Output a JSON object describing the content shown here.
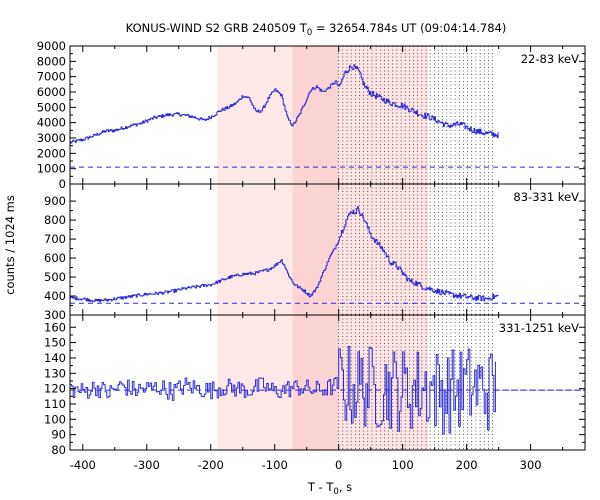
{
  "chart_data": {
    "type": "line",
    "title": "KONUS-WIND S2 GRB 240509 T",
    "title_sub": "0",
    "title_rest": " = 32654.784s UT (09:04:14.784)",
    "xlabel": "T - T",
    "xlabel_sub": "0",
    "xlabel_rest": ", s",
    "ylabel": "counts / 1024 ms",
    "xlim": [
      -420,
      385
    ],
    "x_ticks": [
      -400,
      -300,
      -200,
      -100,
      0,
      100,
      200,
      300
    ],
    "x_tick_labels": [
      "-400",
      "-300",
      "-200",
      "-100",
      "0",
      "100",
      "200",
      "300"
    ],
    "series_color": "#2e2ed6",
    "shading": [
      {
        "from": -190,
        "to": -72,
        "color": "#fde8e8"
      },
      {
        "from": -72,
        "to": 0,
        "color": "#fbd3d3"
      },
      {
        "from": 0,
        "to": 140,
        "color": "#fde3e3"
      }
    ],
    "dotted_lines": {
      "from": 0,
      "to": 245,
      "step": 6.5
    },
    "panels": [
      {
        "band": "22-83 keV",
        "ylim": [
          0,
          9000
        ],
        "y_ticks": [
          0,
          1000,
          2000,
          3000,
          4000,
          5000,
          6000,
          7000,
          8000,
          9000
        ],
        "y_tick_labels": [
          "0",
          "1000",
          "2000",
          "3000",
          "4000",
          "5000",
          "6000",
          "7000",
          "8000",
          "9000"
        ],
        "background": 1100,
        "series": {
          "x": [
            -420,
            -400,
            -380,
            -365,
            -350,
            -330,
            -310,
            -290,
            -270,
            -250,
            -230,
            -210,
            -195,
            -185,
            -172,
            -160,
            -150,
            -140,
            -130,
            -120,
            -110,
            -100,
            -90,
            -80,
            -72,
            -62,
            -52,
            -45,
            -35,
            -25,
            -15,
            -5,
            0,
            10,
            20,
            30,
            40,
            50,
            60,
            70,
            80,
            90,
            100,
            110,
            120,
            130,
            140,
            150,
            160,
            170,
            180,
            190,
            200,
            210,
            220,
            230,
            240,
            250
          ],
          "y": [
            2700,
            2900,
            3200,
            3450,
            3500,
            3750,
            3950,
            4300,
            4500,
            4550,
            4400,
            4150,
            4500,
            4800,
            5000,
            5300,
            5750,
            5600,
            4700,
            4800,
            5600,
            6150,
            5800,
            4250,
            3800,
            4500,
            5400,
            6100,
            6350,
            6000,
            6300,
            6700,
            6300,
            7300,
            7700,
            7400,
            6400,
            5900,
            5700,
            5500,
            5300,
            5200,
            5100,
            4900,
            4700,
            4500,
            4400,
            4200,
            4000,
            3800,
            3850,
            3900,
            3700,
            3500,
            3400,
            3300,
            3250,
            3200
          ]
        }
      },
      {
        "band": "83-331 keV",
        "ylim": [
          300,
          990
        ],
        "y_ticks": [
          300,
          400,
          500,
          600,
          700,
          800,
          900
        ],
        "y_tick_labels": [
          "300",
          "400",
          "500",
          "600",
          "700",
          "800",
          "900"
        ],
        "background": 362,
        "series": {
          "x": [
            -420,
            -400,
            -380,
            -360,
            -340,
            -320,
            -300,
            -280,
            -260,
            -240,
            -220,
            -200,
            -185,
            -170,
            -150,
            -130,
            -110,
            -100,
            -90,
            -85,
            -80,
            -72,
            -65,
            -55,
            -45,
            -35,
            -25,
            -15,
            -5,
            0,
            10,
            20,
            25,
            30,
            40,
            50,
            60,
            70,
            80,
            90,
            100,
            110,
            120,
            130,
            140,
            150,
            160,
            170,
            180,
            190,
            200,
            210,
            220,
            230,
            240,
            250
          ],
          "y": [
            390,
            385,
            375,
            380,
            390,
            400,
            410,
            415,
            425,
            440,
            450,
            460,
            480,
            500,
            515,
            520,
            540,
            560,
            590,
            560,
            520,
            470,
            450,
            430,
            400,
            440,
            520,
            600,
            660,
            700,
            790,
            850,
            840,
            860,
            800,
            720,
            680,
            640,
            580,
            560,
            520,
            480,
            470,
            450,
            440,
            430,
            420,
            410,
            405,
            400,
            395,
            390,
            390,
            385,
            395,
            400
          ]
        }
      },
      {
        "band": "331-1251 keV",
        "ylim": [
          80,
          168
        ],
        "y_ticks": [
          80,
          90,
          100,
          110,
          120,
          130,
          140,
          150,
          160
        ],
        "y_tick_labels": [
          "80",
          "90",
          "100",
          "110",
          "120",
          "130",
          "140",
          "150",
          "160"
        ],
        "background": 119,
        "series": {
          "x": [
            -420,
            -400,
            -380,
            -360,
            -340,
            -320,
            -300,
            -280,
            -260,
            -240,
            -220,
            -200,
            -180,
            -160,
            -140,
            -120,
            -100,
            -80,
            -60,
            -40,
            -20,
            0,
            20,
            40,
            60,
            80,
            100,
            120,
            140,
            160,
            180,
            200,
            220,
            240,
            245
          ],
          "y": [
            120,
            118,
            121,
            117,
            122,
            119,
            120,
            121,
            118,
            122,
            120,
            119,
            121,
            120,
            119,
            122,
            118,
            120,
            121,
            119,
            120,
            123,
            121,
            122,
            120,
            121,
            119,
            120,
            121,
            118,
            119,
            121,
            120,
            119,
            119
          ]
        },
        "noise": {
          "pre": 10,
          "post": 28
        }
      }
    ]
  }
}
